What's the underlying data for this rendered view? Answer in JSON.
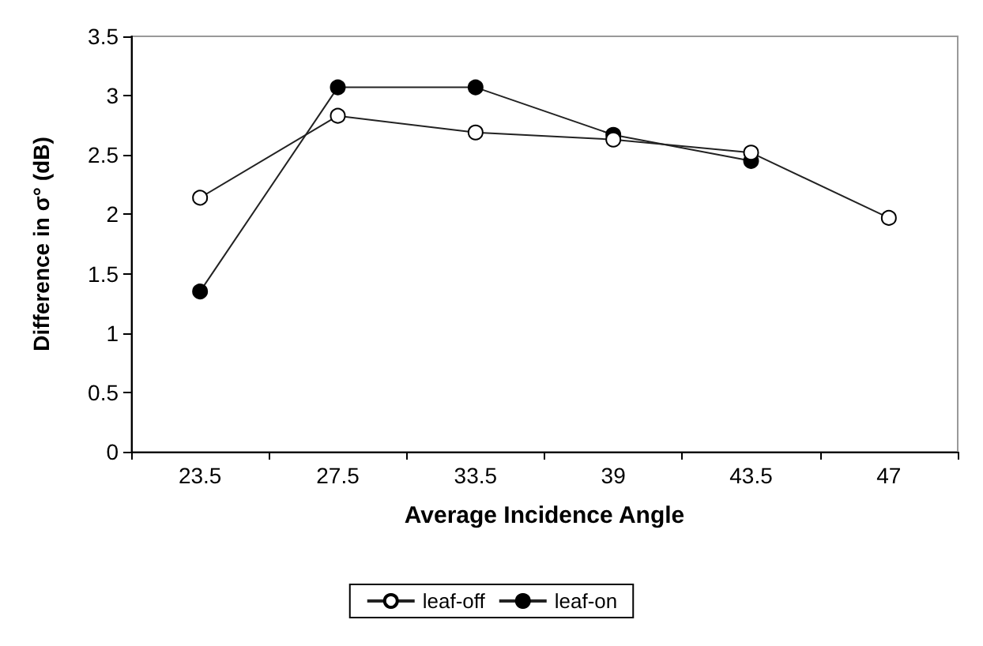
{
  "chart_data": {
    "type": "line",
    "xlabel": "Average Incidence Angle",
    "ylabel": "Difference in σ° (dB)",
    "categories": [
      "23.5",
      "27.5",
      "33.5",
      "39",
      "43.5",
      "47"
    ],
    "series": [
      {
        "name": "leaf-off",
        "color": "#ffffff",
        "values": [
          2.14,
          2.83,
          2.69,
          2.63,
          2.52,
          1.97
        ]
      },
      {
        "name": "leaf-on",
        "color": "#000000",
        "values": [
          1.35,
          3.07,
          3.07,
          2.67,
          2.45,
          null
        ]
      }
    ],
    "ylim": [
      0,
      3.5
    ],
    "yticks": [
      0,
      0.5,
      1,
      1.5,
      2,
      2.5,
      3,
      3.5
    ],
    "grid": false,
    "legend": "bottom",
    "marker": "circle",
    "line_style": "solid"
  }
}
